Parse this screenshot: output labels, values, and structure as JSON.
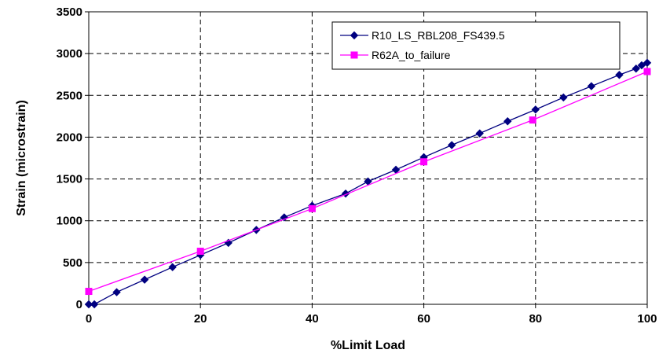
{
  "chart_data": {
    "type": "line",
    "xlabel": "%Limit Load",
    "ylabel": "Strain (microstrain)",
    "xlim": [
      0,
      100
    ],
    "ylim": [
      0,
      3500
    ],
    "xticks": [
      0,
      20,
      40,
      60,
      80,
      100
    ],
    "yticks": [
      0,
      500,
      1000,
      1500,
      2000,
      2500,
      3000,
      3500
    ],
    "grid": true,
    "legend_position": "top-right",
    "series": [
      {
        "name": "R10_LS_RBL208_FS439.5",
        "color": "#000080",
        "marker": "diamond",
        "points": [
          [
            0,
            0
          ],
          [
            1,
            0
          ],
          [
            5,
            145
          ],
          [
            10,
            295
          ],
          [
            15,
            445
          ],
          [
            20,
            590
          ],
          [
            25,
            735
          ],
          [
            30,
            890
          ],
          [
            35,
            1040
          ],
          [
            40,
            1180
          ],
          [
            46,
            1325
          ],
          [
            50,
            1470
          ],
          [
            55,
            1610
          ],
          [
            60,
            1760
          ],
          [
            65,
            1905
          ],
          [
            70,
            2045
          ],
          [
            75,
            2190
          ],
          [
            80,
            2330
          ],
          [
            85,
            2475
          ],
          [
            90,
            2610
          ],
          [
            95,
            2745
          ],
          [
            98,
            2820
          ],
          [
            99,
            2860
          ],
          [
            100,
            2890
          ]
        ]
      },
      {
        "name": "R62A_to_failure",
        "color": "#ff00ff",
        "marker": "square",
        "points": [
          [
            0,
            155
          ],
          [
            20,
            635
          ],
          [
            40,
            1145
          ],
          [
            60,
            1705
          ],
          [
            79.5,
            2205
          ],
          [
            100,
            2785
          ]
        ]
      }
    ]
  }
}
